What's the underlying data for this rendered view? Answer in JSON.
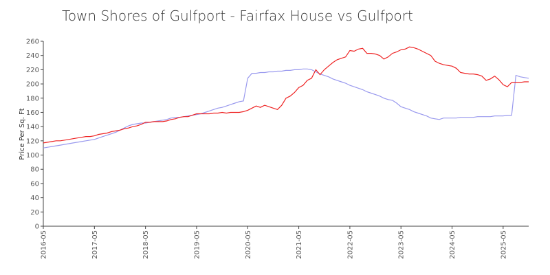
{
  "chart_data": {
    "type": "line",
    "title": "Town Shores of Gulfport - Fairfax House vs Gulfport",
    "y_label": "Price Per Sq. Ft",
    "x": [
      "2016-05",
      "2016-06",
      "2016-07",
      "2016-08",
      "2016-09",
      "2016-10",
      "2016-11",
      "2016-12",
      "2017-01",
      "2017-02",
      "2017-03",
      "2017-04",
      "2017-05",
      "2017-06",
      "2017-07",
      "2017-08",
      "2017-09",
      "2017-10",
      "2017-11",
      "2017-12",
      "2018-01",
      "2018-02",
      "2018-03",
      "2018-04",
      "2018-05",
      "2018-06",
      "2018-07",
      "2018-08",
      "2018-09",
      "2018-10",
      "2018-11",
      "2018-12",
      "2019-01",
      "2019-02",
      "2019-03",
      "2019-04",
      "2019-05",
      "2019-06",
      "2019-07",
      "2019-08",
      "2019-09",
      "2019-10",
      "2019-11",
      "2019-12",
      "2020-01",
      "2020-02",
      "2020-03",
      "2020-04",
      "2020-05",
      "2020-06",
      "2020-07",
      "2020-08",
      "2020-09",
      "2020-10",
      "2020-11",
      "2020-12",
      "2021-01",
      "2021-02",
      "2021-03",
      "2021-04",
      "2021-05",
      "2021-06",
      "2021-07",
      "2021-08",
      "2021-09",
      "2021-10",
      "2021-11",
      "2021-12",
      "2022-01",
      "2022-02",
      "2022-03",
      "2022-04",
      "2022-05",
      "2022-06",
      "2022-07",
      "2022-08",
      "2022-09",
      "2022-10",
      "2022-11",
      "2022-12",
      "2023-01",
      "2023-02",
      "2023-03",
      "2023-04",
      "2023-05",
      "2023-06",
      "2023-07",
      "2023-08",
      "2023-09",
      "2023-10",
      "2023-11",
      "2023-12",
      "2024-01",
      "2024-02",
      "2024-03",
      "2024-04",
      "2024-05",
      "2024-06",
      "2024-07",
      "2024-08",
      "2024-09",
      "2024-10",
      "2024-11",
      "2024-12",
      "2025-01",
      "2025-02",
      "2025-03",
      "2025-04",
      "2025-05",
      "2025-06",
      "2025-07",
      "2025-08",
      "2025-09",
      "2025-10",
      "2025-11"
    ],
    "series": [
      {
        "color": "#9999ee",
        "values": [
          110,
          111,
          112,
          113,
          114,
          115,
          116,
          117,
          118,
          119,
          120,
          121,
          122,
          124,
          126,
          128,
          130,
          132,
          135,
          138,
          141,
          143,
          144,
          145,
          145,
          146,
          147,
          148,
          149,
          150,
          152,
          153,
          153,
          154,
          155,
          156,
          157,
          158,
          160,
          162,
          164,
          166,
          167,
          169,
          171,
          173,
          175,
          176,
          208,
          215,
          215,
          216,
          216,
          217,
          217,
          218,
          218,
          219,
          219,
          220,
          220,
          221,
          221,
          220,
          217,
          214,
          212,
          210,
          207,
          205,
          203,
          201,
          198,
          196,
          194,
          192,
          189,
          187,
          185,
          183,
          180,
          178,
          177,
          173,
          168,
          166,
          164,
          161,
          159,
          157,
          155,
          152,
          151,
          150,
          152,
          152,
          152,
          152,
          153,
          153,
          153,
          153,
          154,
          154,
          154,
          154,
          155,
          155,
          155,
          156,
          156,
          212,
          210,
          209,
          208
        ]
      },
      {
        "color": "#ee2222",
        "values": [
          117,
          118,
          119,
          120,
          120,
          121,
          122,
          123,
          124,
          125,
          126,
          126,
          127,
          129,
          130,
          131,
          133,
          134,
          135,
          137,
          138,
          140,
          141,
          143,
          146,
          146,
          147,
          147,
          147,
          148,
          150,
          151,
          153,
          154,
          154,
          156,
          158,
          158,
          158,
          158,
          159,
          159,
          160,
          159,
          160,
          160,
          160,
          161,
          163,
          166,
          169,
          167,
          170,
          168,
          166,
          164,
          170,
          180,
          183,
          188,
          195,
          198,
          205,
          208,
          220,
          213,
          220,
          225,
          230,
          234,
          236,
          238,
          247,
          246,
          249,
          250,
          243,
          243,
          242,
          240,
          235,
          238,
          243,
          245,
          248,
          249,
          252,
          251,
          249,
          246,
          243,
          240,
          232,
          229,
          227,
          226,
          225,
          222,
          216,
          215,
          214,
          214,
          213,
          211,
          205,
          207,
          211,
          206,
          199,
          196,
          202,
          202,
          202,
          203,
          203
        ]
      }
    ],
    "xticks": [
      "2016-05",
      "2017-05",
      "2018-05",
      "2019-05",
      "2020-05",
      "2021-05",
      "2022-05",
      "2023-05",
      "2024-05",
      "2025-05"
    ],
    "ylim": [
      0,
      260
    ],
    "yticks": [
      0,
      20,
      40,
      60,
      80,
      100,
      120,
      140,
      160,
      180,
      200,
      220,
      240,
      260
    ]
  }
}
